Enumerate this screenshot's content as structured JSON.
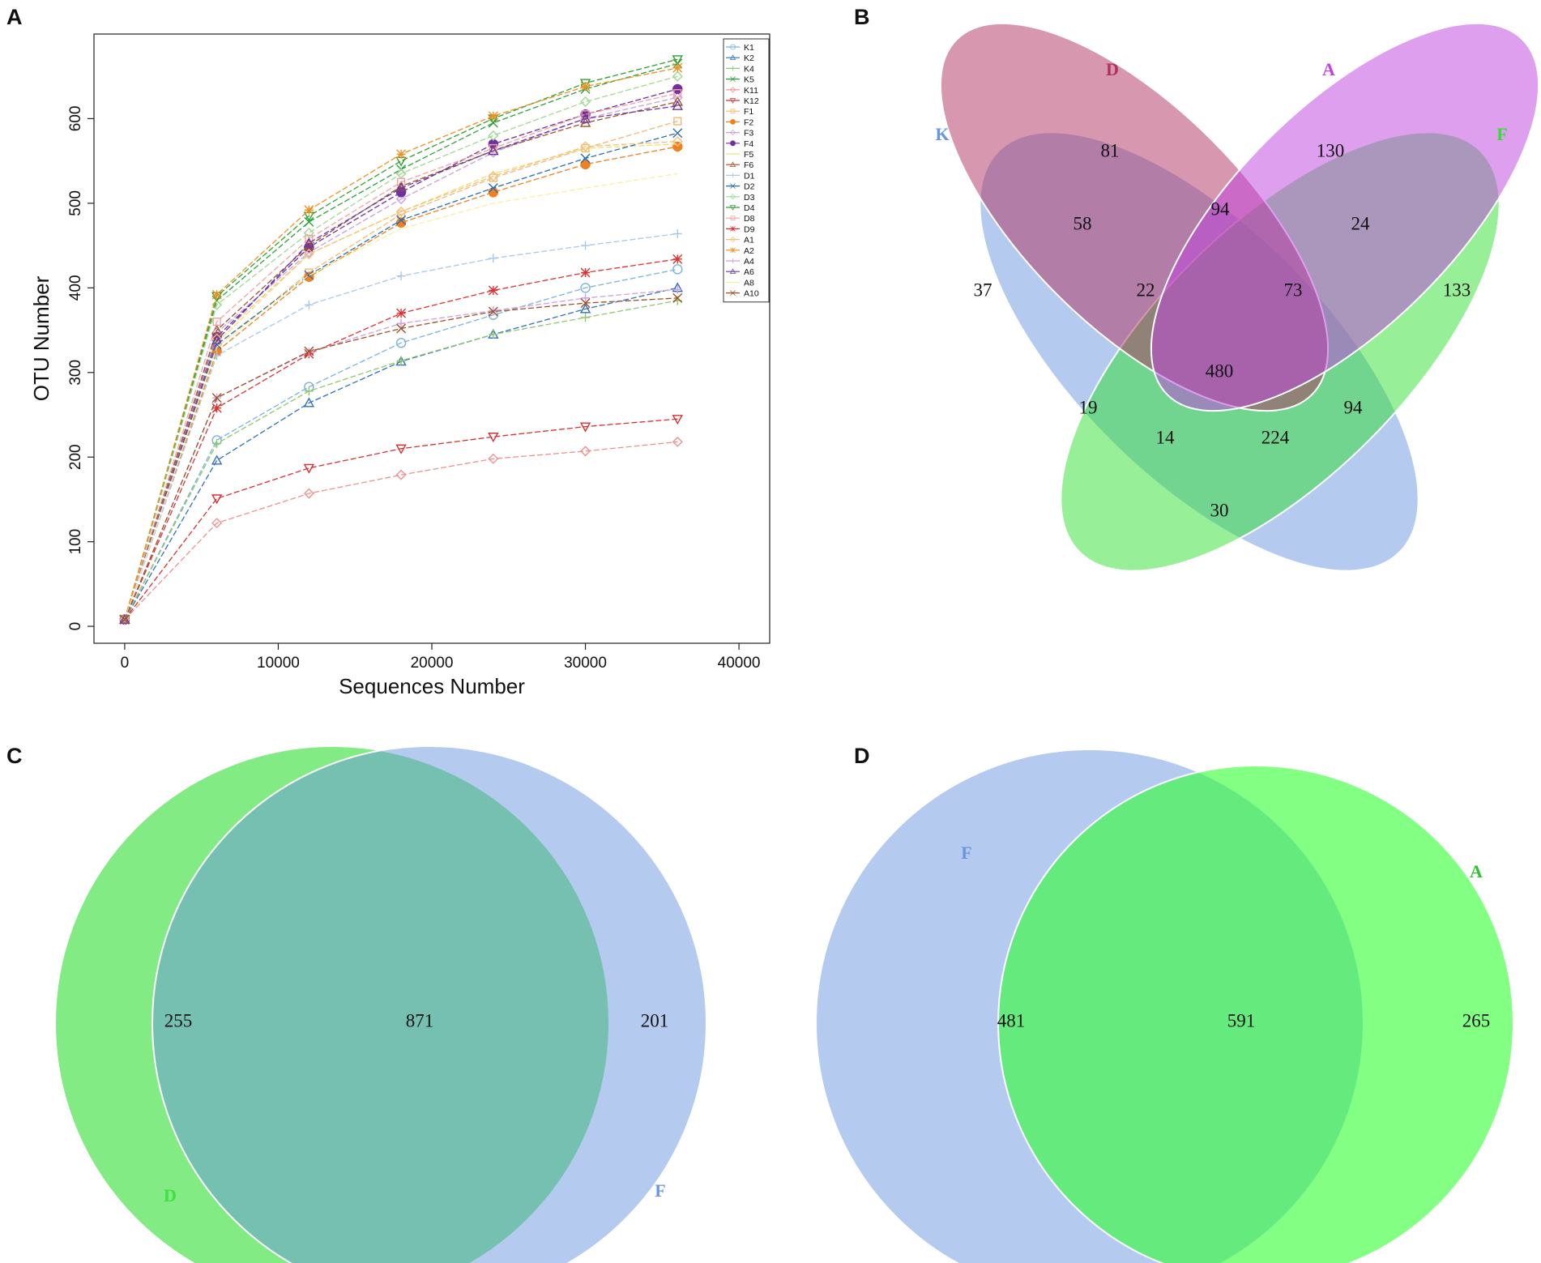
{
  "panels": {
    "a": {
      "letter": "A"
    },
    "b": {
      "letter": "B"
    },
    "c": {
      "letter": "C"
    },
    "d": {
      "letter": "D"
    }
  },
  "chart_data": [
    {
      "type": "line",
      "panel": "A",
      "title": "",
      "xlabel": "Sequences Number",
      "ylabel": "OTU Number",
      "xlim": [
        0,
        40000
      ],
      "ylim": [
        0,
        680
      ],
      "xticks": [
        0,
        10000,
        20000,
        30000,
        40000
      ],
      "yticks": [
        0,
        100,
        200,
        300,
        400,
        500,
        600
      ],
      "legend_position": "top-right",
      "x": [
        0,
        6000,
        12000,
        18000,
        24000,
        30000,
        36000
      ],
      "series": [
        {
          "name": "K1",
          "color": "#7bb3de",
          "marker": "circle",
          "values": [
            8,
            220,
            283,
            335,
            368,
            400,
            422
          ]
        },
        {
          "name": "K2",
          "color": "#2f70c0",
          "marker": "triangle",
          "values": [
            8,
            196,
            264,
            313,
            345,
            375,
            400
          ]
        },
        {
          "name": "K4",
          "color": "#8ec86a",
          "marker": "plus",
          "values": [
            8,
            216,
            278,
            314,
            345,
            365,
            385
          ]
        },
        {
          "name": "K5",
          "color": "#2aa23a",
          "marker": "cross",
          "values": [
            8,
            385,
            478,
            540,
            595,
            635,
            665
          ]
        },
        {
          "name": "K11",
          "color": "#ef9090",
          "marker": "diamond",
          "values": [
            8,
            122,
            157,
            179,
            198,
            207,
            218
          ]
        },
        {
          "name": "K12",
          "color": "#d93030",
          "marker": "tridown",
          "values": [
            8,
            151,
            187,
            210,
            224,
            236,
            245
          ]
        },
        {
          "name": "F1",
          "color": "#f5b770",
          "marker": "square",
          "values": [
            8,
            330,
            418,
            487,
            530,
            565,
            597
          ]
        },
        {
          "name": "F2",
          "color": "#f08020",
          "marker": "dot",
          "values": [
            8,
            325,
            413,
            477,
            513,
            546,
            567
          ]
        },
        {
          "name": "F3",
          "color": "#c9a0dc",
          "marker": "diamond",
          "values": [
            8,
            347,
            442,
            505,
            560,
            600,
            625
          ]
        },
        {
          "name": "F4",
          "color": "#7030a0",
          "marker": "dot",
          "values": [
            8,
            342,
            448,
            513,
            570,
            605,
            635
          ]
        },
        {
          "name": "F5",
          "color": "#f0e070",
          "marker": "none",
          "values": [
            8,
            335,
            440,
            490,
            535,
            565,
            570
          ]
        },
        {
          "name": "F6",
          "color": "#a0522d",
          "marker": "triangle",
          "values": [
            8,
            350,
            450,
            520,
            562,
            595,
            620
          ]
        },
        {
          "name": "D1",
          "color": "#a8c8e8",
          "marker": "plus",
          "values": [
            8,
            320,
            380,
            414,
            435,
            450,
            464
          ]
        },
        {
          "name": "D2",
          "color": "#2a6fb0",
          "marker": "cross",
          "values": [
            8,
            333,
            415,
            480,
            518,
            553,
            583
          ]
        },
        {
          "name": "D3",
          "color": "#a0d890",
          "marker": "diamond",
          "values": [
            8,
            380,
            465,
            535,
            580,
            620,
            650
          ]
        },
        {
          "name": "D4",
          "color": "#30a030",
          "marker": "tridown",
          "values": [
            8,
            390,
            485,
            550,
            600,
            642,
            670
          ]
        },
        {
          "name": "D8",
          "color": "#f4a0a0",
          "marker": "square",
          "values": [
            8,
            360,
            458,
            525,
            565,
            605,
            630
          ]
        },
        {
          "name": "D9",
          "color": "#e03030",
          "marker": "star",
          "values": [
            8,
            258,
            322,
            370,
            397,
            418,
            434
          ]
        },
        {
          "name": "A1",
          "color": "#f5c07a",
          "marker": "diamond",
          "values": [
            8,
            340,
            440,
            490,
            532,
            567,
            573
          ]
        },
        {
          "name": "A2",
          "color": "#f09020",
          "marker": "star",
          "values": [
            8,
            392,
            492,
            558,
            603,
            638,
            660
          ]
        },
        {
          "name": "A4",
          "color": "#d0a0e0",
          "marker": "plus",
          "values": [
            8,
            270,
            324,
            358,
            373,
            388,
            398
          ]
        },
        {
          "name": "A6",
          "color": "#6a3aa0",
          "marker": "triangle",
          "values": [
            8,
            338,
            453,
            518,
            562,
            600,
            615
          ]
        },
        {
          "name": "A8",
          "color": "#f8f0a0",
          "marker": "none",
          "values": [
            8,
            330,
            415,
            470,
            500,
            518,
            535
          ]
        },
        {
          "name": "A10",
          "color": "#a05028",
          "marker": "cross",
          "values": [
            8,
            270,
            325,
            352,
            372,
            382,
            388
          ]
        }
      ]
    },
    {
      "type": "venn",
      "panel": "B",
      "sets": [
        {
          "name": "K",
          "color": "#6a95e0"
        },
        {
          "name": "D",
          "color": "#b03060"
        },
        {
          "name": "A",
          "color": "#c040e0"
        },
        {
          "name": "F",
          "color": "#30e030"
        }
      ],
      "regions": [
        {
          "sets": [
            "K"
          ],
          "value": 37
        },
        {
          "sets": [
            "D"
          ],
          "value": 81
        },
        {
          "sets": [
            "A"
          ],
          "value": 130
        },
        {
          "sets": [
            "F"
          ],
          "value": 133
        },
        {
          "sets": [
            "K",
            "D"
          ],
          "value": 58
        },
        {
          "sets": [
            "D",
            "A"
          ],
          "value": 94
        },
        {
          "sets": [
            "A",
            "F"
          ],
          "value": 24
        },
        {
          "sets": [
            "K",
            "D",
            "A"
          ],
          "value": 22
        },
        {
          "sets": [
            "D",
            "A",
            "F"
          ],
          "value": 73
        },
        {
          "sets": [
            "K",
            "D",
            "A",
            "F"
          ],
          "value": 480
        },
        {
          "sets": [
            "K",
            "A"
          ],
          "value": 19
        },
        {
          "sets": [
            "D",
            "F"
          ],
          "value": 94
        },
        {
          "sets": [
            "K",
            "A",
            "F"
          ],
          "value": 14
        },
        {
          "sets": [
            "K",
            "D",
            "F"
          ],
          "value": 224
        },
        {
          "sets": [
            "K",
            "F"
          ],
          "value": 30
        }
      ]
    },
    {
      "type": "venn",
      "panel": "C",
      "sets": [
        {
          "name": "D",
          "color": "#40e040"
        },
        {
          "name": "F",
          "color": "#6a95e0"
        }
      ],
      "regions": [
        {
          "sets": [
            "D"
          ],
          "value": 255
        },
        {
          "sets": [
            "D",
            "F"
          ],
          "value": 871
        },
        {
          "sets": [
            "F"
          ],
          "value": 201
        }
      ]
    },
    {
      "type": "venn",
      "panel": "D",
      "sets": [
        {
          "name": "F",
          "color": "#6a95e0"
        },
        {
          "name": "A",
          "color": "#30c030"
        }
      ],
      "regions": [
        {
          "sets": [
            "F"
          ],
          "value": 481
        },
        {
          "sets": [
            "F",
            "A"
          ],
          "value": 591
        },
        {
          "sets": [
            "A"
          ],
          "value": 265
        }
      ]
    }
  ]
}
